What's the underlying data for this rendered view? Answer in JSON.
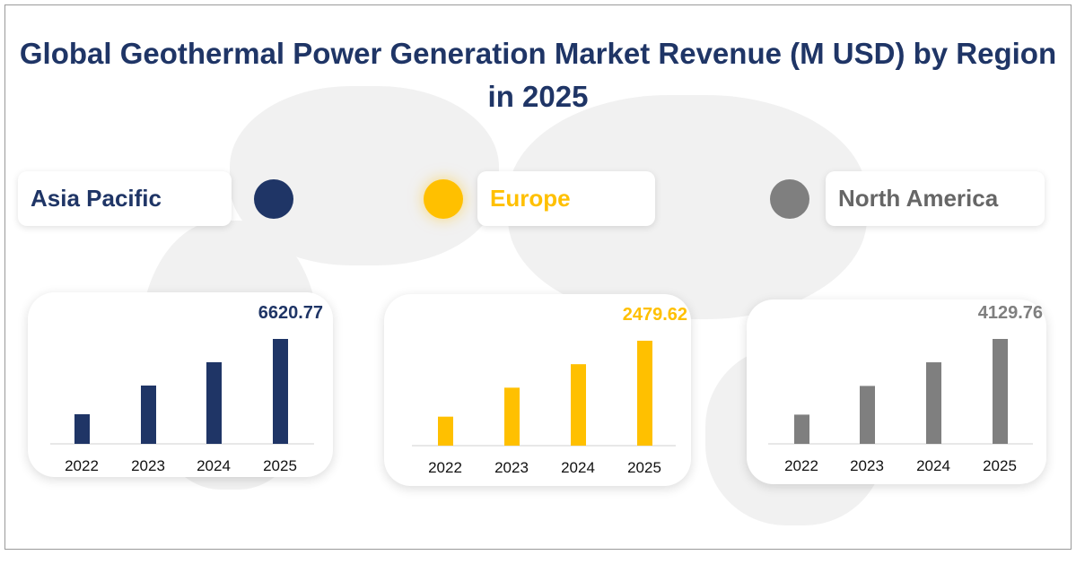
{
  "title": "Global Geothermal Power Generation Market Revenue (M USD) by Region in 2025",
  "chart_data": [
    {
      "type": "bar",
      "region": "Asia Pacific",
      "color": "#1f3566",
      "categories": [
        "2022",
        "2023",
        "2024",
        "2025"
      ],
      "values": [
        1870,
        3680,
        5150,
        6620.77
      ],
      "data_label": "6620.77",
      "grid": false
    },
    {
      "type": "bar",
      "region": "Europe",
      "color": "#ffc000",
      "categories": [
        "2022",
        "2023",
        "2024",
        "2025"
      ],
      "values": [
        685,
        1370,
        1925,
        2479.62
      ],
      "data_label": "2479.62",
      "grid": false
    },
    {
      "type": "bar",
      "region": "North America",
      "color": "#7f7f7f",
      "categories": [
        "2022",
        "2023",
        "2024",
        "2025"
      ],
      "values": [
        1150,
        2280,
        3210,
        4129.76
      ],
      "data_label": "4129.76",
      "grid": false
    }
  ]
}
